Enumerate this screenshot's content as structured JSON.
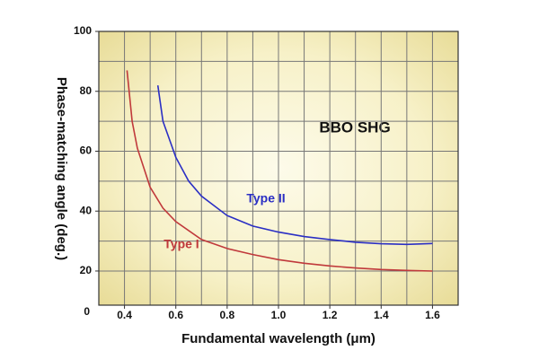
{
  "chart_data": {
    "type": "line",
    "x_label": "Fundamental wavelength (μm)",
    "y_label": "Phase-matching angle  (deg.)",
    "annotation": "BBO    SHG",
    "origin_label": "0",
    "xlim": [
      0.3,
      1.7
    ],
    "ylim": [
      8.6,
      100
    ],
    "xticks": [
      0.4,
      0.6,
      0.8,
      {
        "value": 1.0,
        "label": "1.0"
      },
      1.2,
      1.4,
      1.6
    ],
    "yticks": [
      20,
      40,
      60,
      80,
      100
    ],
    "xgrid": [
      0.4,
      0.5,
      0.6,
      0.7,
      0.8,
      0.9,
      1.0,
      1.1,
      1.2,
      1.3,
      1.4,
      1.5,
      1.6
    ],
    "ygrid": [
      20,
      30,
      40,
      50,
      60,
      70,
      80,
      90
    ],
    "grid": true,
    "series": [
      {
        "name": "Type I",
        "color": "#c0393b",
        "x": [
          0.41,
          0.43,
          0.45,
          0.5,
          0.55,
          0.6,
          0.7,
          0.8,
          0.9,
          1.0,
          1.1,
          1.2,
          1.3,
          1.4,
          1.5,
          1.6
        ],
        "values": [
          87,
          70,
          61,
          48,
          41,
          36.5,
          30.5,
          27.5,
          25.5,
          23.8,
          22.6,
          21.7,
          21,
          20.5,
          20.2,
          20
        ]
      },
      {
        "name": "Type II",
        "color": "#2b2fc4",
        "x": [
          0.53,
          0.55,
          0.6,
          0.65,
          0.7,
          0.8,
          0.9,
          1.0,
          1.1,
          1.2,
          1.3,
          1.4,
          1.5,
          1.6
        ],
        "values": [
          82,
          70,
          58,
          50,
          45,
          38.5,
          35,
          33,
          31.5,
          30.5,
          29.6,
          29.1,
          28.9,
          29.2
        ]
      }
    ]
  }
}
